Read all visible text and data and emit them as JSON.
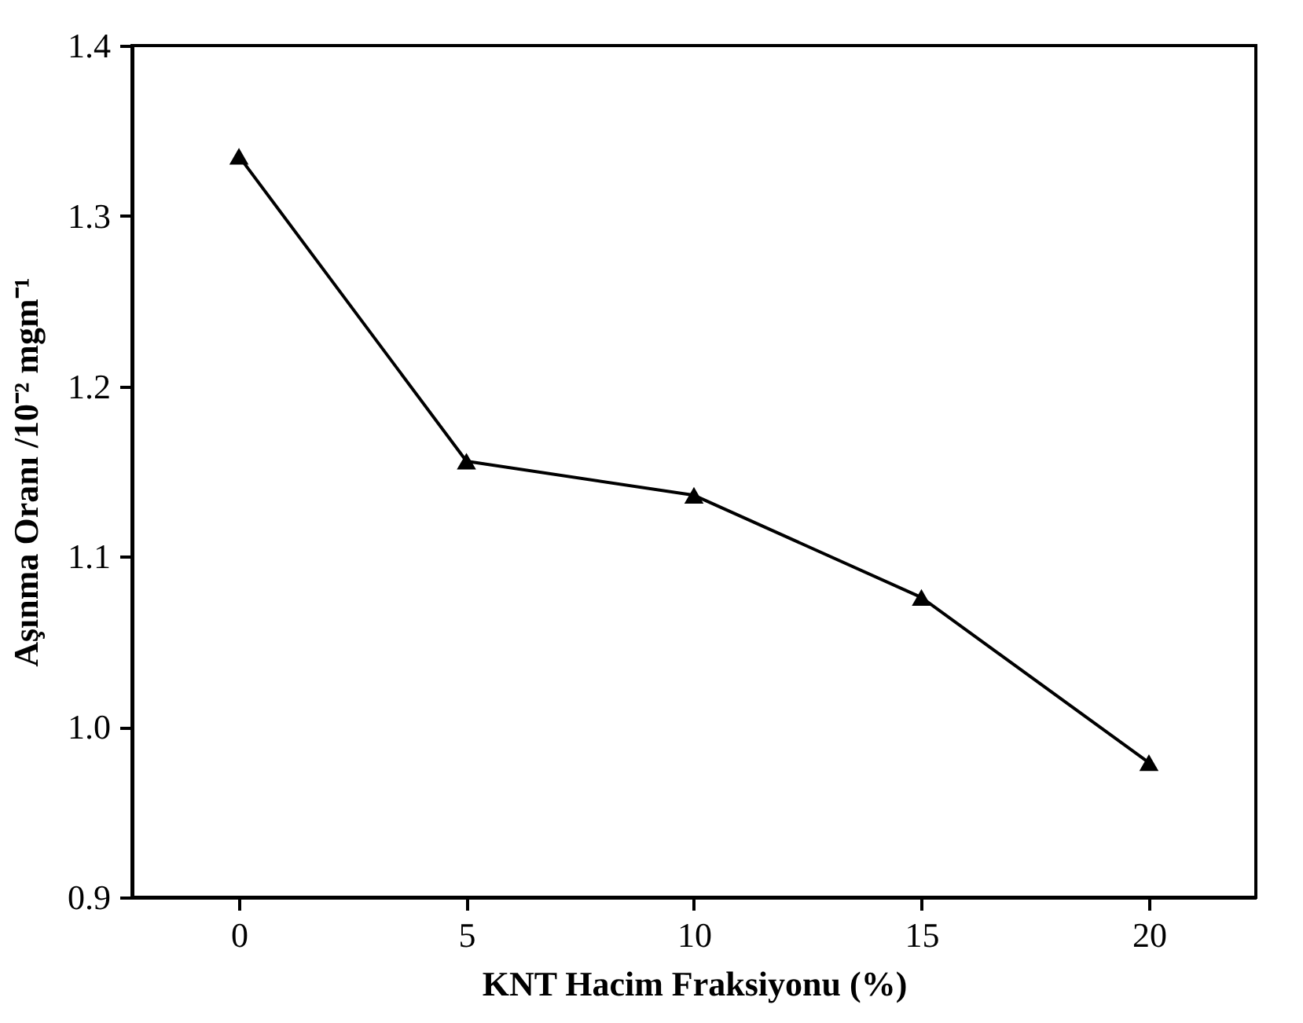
{
  "chart_data": {
    "type": "line",
    "xlabel": "KNT Hacim Fraksiyonu  (%)",
    "ylabel": "Aşınma Oranı /10⁻² mgm⁻¹",
    "x": [
      0,
      5,
      10,
      15,
      20
    ],
    "series": [
      {
        "color": "#000000",
        "values": [
          1.335,
          1.156,
          1.136,
          1.076,
          0.979
        ]
      }
    ],
    "xlim": [
      -2.35,
      22.35
    ],
    "xticks": [
      0,
      5,
      10,
      15,
      20
    ],
    "ylim": [
      0.9,
      1.4
    ],
    "yticks": [
      0.9,
      {
        "value": 1,
        "label": "1.0"
      },
      1.1,
      1.2,
      1.3,
      1.4
    ],
    "marker": "triangle",
    "line_style": "solid",
    "grid": false
  }
}
